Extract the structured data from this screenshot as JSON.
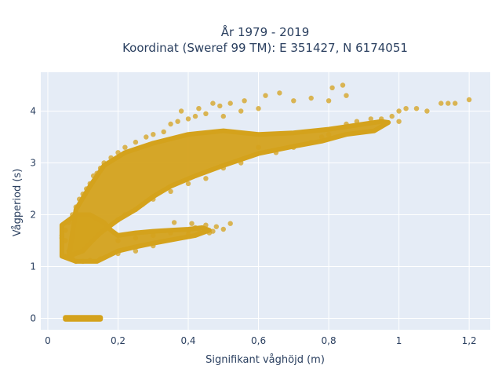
{
  "chart_data": {
    "type": "scatter",
    "title_line1": "År 1979 - 2019",
    "title_line2": "Koordinat (Sweref 99 TM): E 351427, N 6174051",
    "xlabel": "Signifikant våghöjd (m)",
    "ylabel": "Vågperiod (s)",
    "xlim": [
      -0.02,
      1.26
    ],
    "ylim": [
      -0.22,
      4.75
    ],
    "xticks": [
      0,
      0.2,
      0.4,
      0.6,
      0.8,
      1,
      1.2
    ],
    "xtick_labels": [
      "0",
      "0,2",
      "0,4",
      "0,6",
      "0,8",
      "1",
      "1,2"
    ],
    "yticks": [
      0,
      1,
      2,
      3,
      4
    ],
    "ytick_labels": [
      "0",
      "1",
      "2",
      "3",
      "4"
    ],
    "grid": true,
    "colors": {
      "marker": "#d4a21c",
      "plot_bg": "#e5ecf6",
      "grid": "#ffffff"
    },
    "marker_opacity": 0.75,
    "points": [
      [
        0.05,
        0
      ],
      [
        0.06,
        0
      ],
      [
        0.07,
        0
      ],
      [
        0.08,
        0
      ],
      [
        0.09,
        0
      ],
      [
        0.1,
        0
      ],
      [
        0.11,
        0
      ],
      [
        0.12,
        0
      ],
      [
        0.13,
        0
      ],
      [
        0.14,
        0
      ],
      [
        0.15,
        0
      ],
      [
        0.04,
        1.55
      ],
      [
        0.04,
        1.6
      ],
      [
        0.05,
        1.2
      ],
      [
        0.05,
        1.5
      ],
      [
        0.05,
        1.7
      ],
      [
        0.06,
        1.3
      ],
      [
        0.06,
        1.85
      ],
      [
        0.07,
        2.0
      ],
      [
        0.07,
        1.15
      ],
      [
        0.08,
        2.15
      ],
      [
        0.08,
        1.1
      ],
      [
        0.09,
        2.3
      ],
      [
        0.1,
        2.4
      ],
      [
        0.11,
        2.5
      ],
      [
        0.12,
        2.6
      ],
      [
        0.13,
        2.75
      ],
      [
        0.14,
        2.8
      ],
      [
        0.15,
        2.9
      ],
      [
        0.16,
        3.0
      ],
      [
        0.18,
        3.1
      ],
      [
        0.2,
        3.2
      ],
      [
        0.22,
        3.3
      ],
      [
        0.25,
        3.4
      ],
      [
        0.28,
        3.5
      ],
      [
        0.3,
        3.55
      ],
      [
        0.33,
        3.6
      ],
      [
        0.35,
        3.75
      ],
      [
        0.37,
        3.8
      ],
      [
        0.4,
        3.85
      ],
      [
        0.42,
        3.9
      ],
      [
        0.45,
        3.95
      ],
      [
        0.5,
        3.9
      ],
      [
        0.55,
        4.0
      ],
      [
        0.6,
        4.05
      ],
      [
        0.38,
        4.0
      ],
      [
        0.43,
        4.05
      ],
      [
        0.47,
        4.15
      ],
      [
        0.49,
        4.1
      ],
      [
        0.52,
        4.15
      ],
      [
        0.56,
        4.2
      ],
      [
        0.62,
        4.3
      ],
      [
        0.66,
        4.35
      ],
      [
        0.7,
        4.2
      ],
      [
        0.75,
        4.25
      ],
      [
        0.8,
        4.2
      ],
      [
        0.85,
        4.3
      ],
      [
        0.81,
        4.45
      ],
      [
        0.84,
        4.5
      ],
      [
        0.85,
        3.75
      ],
      [
        0.88,
        3.8
      ],
      [
        0.92,
        3.85
      ],
      [
        0.95,
        3.85
      ],
      [
        0.98,
        3.9
      ],
      [
        1.0,
        4.0
      ],
      [
        1.02,
        4.05
      ],
      [
        1.05,
        4.05
      ],
      [
        1.08,
        4.0
      ],
      [
        1.12,
        4.15
      ],
      [
        1.14,
        4.15
      ],
      [
        1.16,
        4.15
      ],
      [
        1.2,
        4.22
      ],
      [
        1.0,
        3.8
      ],
      [
        0.2,
        1.5
      ],
      [
        0.25,
        1.55
      ],
      [
        0.3,
        1.6
      ],
      [
        0.35,
        1.65
      ],
      [
        0.4,
        1.7
      ],
      [
        0.42,
        1.75
      ],
      [
        0.45,
        1.8
      ],
      [
        0.47,
        1.68
      ],
      [
        0.5,
        1.72
      ],
      [
        0.52,
        1.83
      ],
      [
        0.46,
        1.65
      ],
      [
        0.43,
        1.72
      ],
      [
        0.48,
        1.77
      ],
      [
        0.41,
        1.83
      ],
      [
        0.36,
        1.85
      ],
      [
        0.4,
        1.62
      ],
      [
        0.1,
        1.1
      ],
      [
        0.12,
        1.12
      ],
      [
        0.15,
        1.15
      ],
      [
        0.2,
        1.25
      ],
      [
        0.25,
        1.3
      ],
      [
        0.3,
        1.4
      ],
      [
        0.6,
        3.3
      ],
      [
        0.65,
        3.2
      ],
      [
        0.7,
        3.3
      ],
      [
        0.55,
        3.0
      ],
      [
        0.5,
        2.9
      ],
      [
        0.45,
        2.7
      ],
      [
        0.4,
        2.6
      ],
      [
        0.35,
        2.45
      ],
      [
        0.3,
        2.3
      ],
      [
        0.27,
        2.2
      ],
      [
        0.25,
        2.1
      ],
      [
        0.22,
        2.0
      ],
      [
        0.2,
        1.9
      ],
      [
        0.75,
        3.4
      ],
      [
        0.78,
        3.5
      ],
      [
        0.8,
        3.55
      ]
    ],
    "density_bands": [
      {
        "description": "main_cloud_upper",
        "poly": [
          [
            0.06,
            1.2
          ],
          [
            0.08,
            2.1
          ],
          [
            0.12,
            2.55
          ],
          [
            0.16,
            2.95
          ],
          [
            0.22,
            3.2
          ],
          [
            0.3,
            3.38
          ],
          [
            0.4,
            3.55
          ],
          [
            0.5,
            3.62
          ],
          [
            0.6,
            3.55
          ],
          [
            0.7,
            3.58
          ],
          [
            0.8,
            3.65
          ],
          [
            0.85,
            3.7
          ],
          [
            0.9,
            3.75
          ],
          [
            0.95,
            3.8
          ],
          [
            0.97,
            3.78
          ],
          [
            0.93,
            3.62
          ],
          [
            0.85,
            3.55
          ],
          [
            0.78,
            3.42
          ],
          [
            0.7,
            3.32
          ],
          [
            0.6,
            3.18
          ],
          [
            0.5,
            2.95
          ],
          [
            0.42,
            2.75
          ],
          [
            0.35,
            2.55
          ],
          [
            0.3,
            2.35
          ],
          [
            0.25,
            2.1
          ],
          [
            0.2,
            1.9
          ],
          [
            0.15,
            1.65
          ],
          [
            0.12,
            1.45
          ],
          [
            0.1,
            1.3
          ]
        ]
      },
      {
        "description": "lower_dense_region",
        "poly": [
          [
            0.04,
            1.2
          ],
          [
            0.04,
            1.8
          ],
          [
            0.08,
            2.0
          ],
          [
            0.12,
            2.0
          ],
          [
            0.16,
            1.85
          ],
          [
            0.18,
            1.7
          ],
          [
            0.2,
            1.6
          ],
          [
            0.25,
            1.65
          ],
          [
            0.3,
            1.68
          ],
          [
            0.35,
            1.7
          ],
          [
            0.4,
            1.72
          ],
          [
            0.44,
            1.75
          ],
          [
            0.46,
            1.7
          ],
          [
            0.42,
            1.6
          ],
          [
            0.38,
            1.55
          ],
          [
            0.3,
            1.45
          ],
          [
            0.25,
            1.38
          ],
          [
            0.2,
            1.3
          ],
          [
            0.17,
            1.2
          ],
          [
            0.14,
            1.1
          ],
          [
            0.08,
            1.1
          ]
        ]
      },
      {
        "description": "zero_row",
        "poly": [
          [
            0.05,
            -0.02
          ],
          [
            0.15,
            -0.02
          ],
          [
            0.15,
            0.02
          ],
          [
            0.05,
            0.02
          ]
        ]
      }
    ]
  }
}
